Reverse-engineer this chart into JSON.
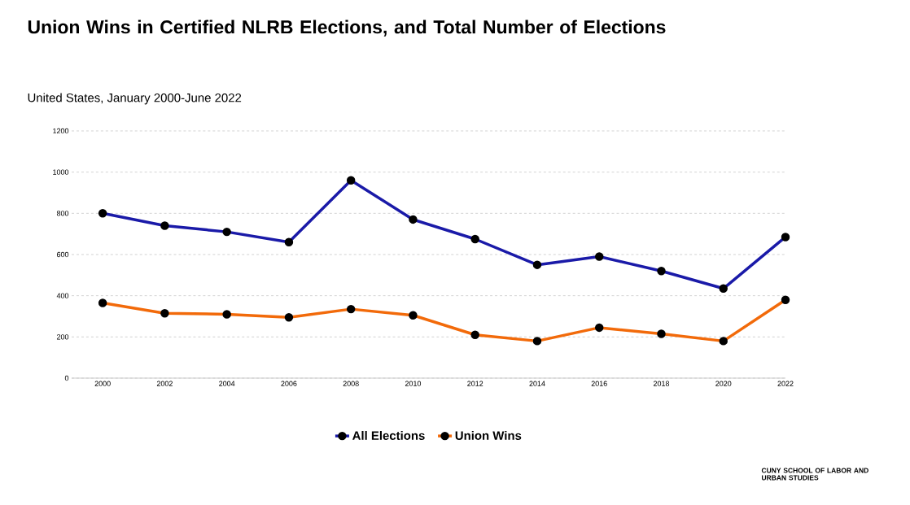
{
  "chart_data": {
    "type": "line",
    "title": "Union Wins in Certified NLRB Elections, and Total Number of Elections",
    "subtitle": "United States, January 2000-June 2022",
    "x": [
      2000,
      2002,
      2004,
      2006,
      2008,
      2010,
      2012,
      2014,
      2016,
      2018,
      2020,
      2022
    ],
    "series": [
      {
        "name": "All Elections",
        "color": "#1a1aa8",
        "values": [
          800,
          740,
          710,
          660,
          960,
          770,
          675,
          550,
          590,
          520,
          435,
          685
        ]
      },
      {
        "name": "Union Wins",
        "color": "#f26a0a",
        "values": [
          365,
          315,
          310,
          295,
          335,
          305,
          210,
          180,
          245,
          215,
          180,
          380
        ]
      }
    ],
    "xlim": [
      1999,
      2022
    ],
    "xticks": [
      2000,
      2002,
      2004,
      2006,
      2008,
      2010,
      2012,
      2014,
      2016,
      2018,
      2020,
      2022
    ],
    "ylim": [
      0,
      1200
    ],
    "yticks": [
      0,
      200,
      400,
      600,
      800,
      1000,
      1200
    ],
    "grid": "y",
    "legend": "bottom",
    "marker": "circle",
    "line_style": "solid",
    "annotations": [
      "CUNY SCHOOL OF LABOR AND URBAN STUDIES"
    ]
  }
}
